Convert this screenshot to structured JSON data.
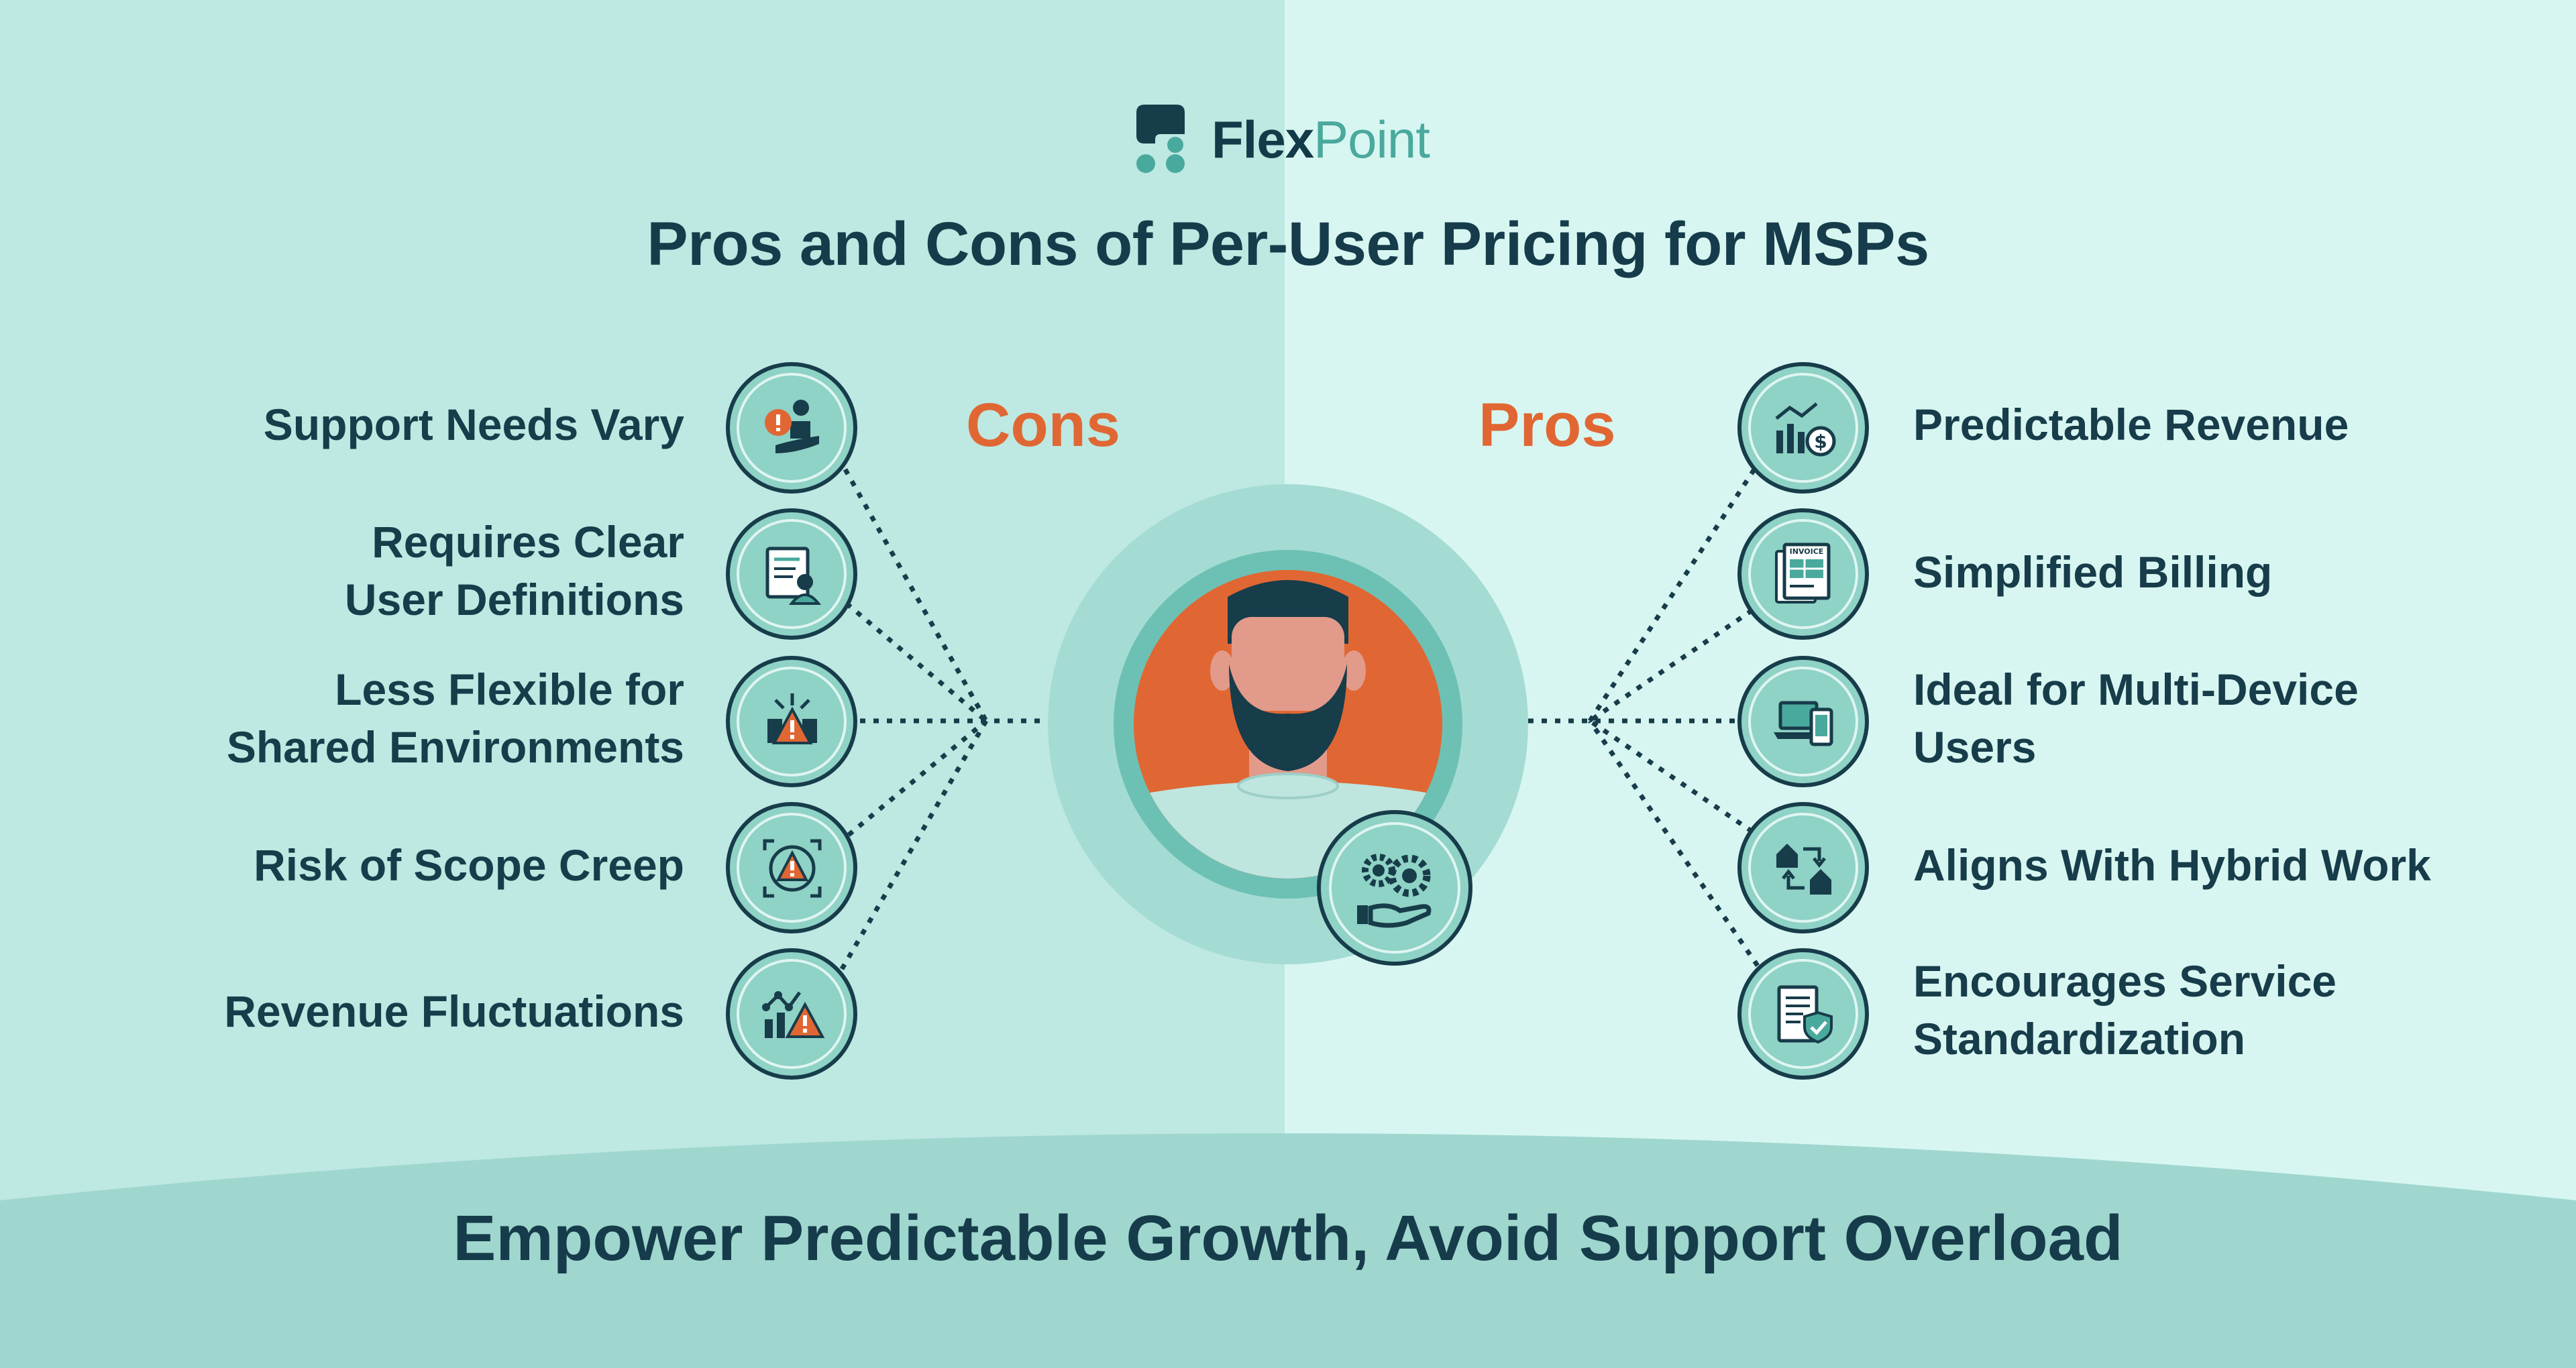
{
  "brand": {
    "name_part1": "Flex",
    "name_part2": "Point"
  },
  "title": "Pros and Cons of Per-User Pricing for MSPs",
  "cons": {
    "label": "Cons",
    "items": [
      {
        "line1": "Support Needs Vary",
        "line2": "",
        "icon": "support-person-alert-icon"
      },
      {
        "line1": "Requires Clear",
        "line2": "User Definitions",
        "icon": "user-document-icon"
      },
      {
        "line1": "Less Flexible for",
        "line2": "Shared Environments",
        "icon": "network-warning-icon"
      },
      {
        "line1": "Risk of Scope Creep",
        "line2": "",
        "icon": "target-warning-icon"
      },
      {
        "line1": "Revenue Fluctuations",
        "line2": "",
        "icon": "chart-warning-icon"
      }
    ]
  },
  "pros": {
    "label": "Pros",
    "items": [
      {
        "line1": "Predictable Revenue",
        "line2": "",
        "icon": "revenue-chart-coin-icon"
      },
      {
        "line1": "Simplified Billing",
        "line2": "",
        "icon": "invoice-icon"
      },
      {
        "line1": "Ideal for Multi-Device",
        "line2": "Users",
        "icon": "laptop-phone-icon"
      },
      {
        "line1": "Aligns With Hybrid Work",
        "line2": "",
        "icon": "home-office-arrows-icon"
      },
      {
        "line1": "Encourages Service",
        "line2": "Standardization",
        "icon": "document-shield-icon"
      }
    ]
  },
  "icon_badge_text": "INVOICE",
  "footer": "Empower Predictable Growth, Avoid Support Overload",
  "colors": {
    "dark": "#173c4a",
    "accent": "#e06733",
    "teal": "#4aa99d",
    "circle": "#8fd2c6"
  }
}
